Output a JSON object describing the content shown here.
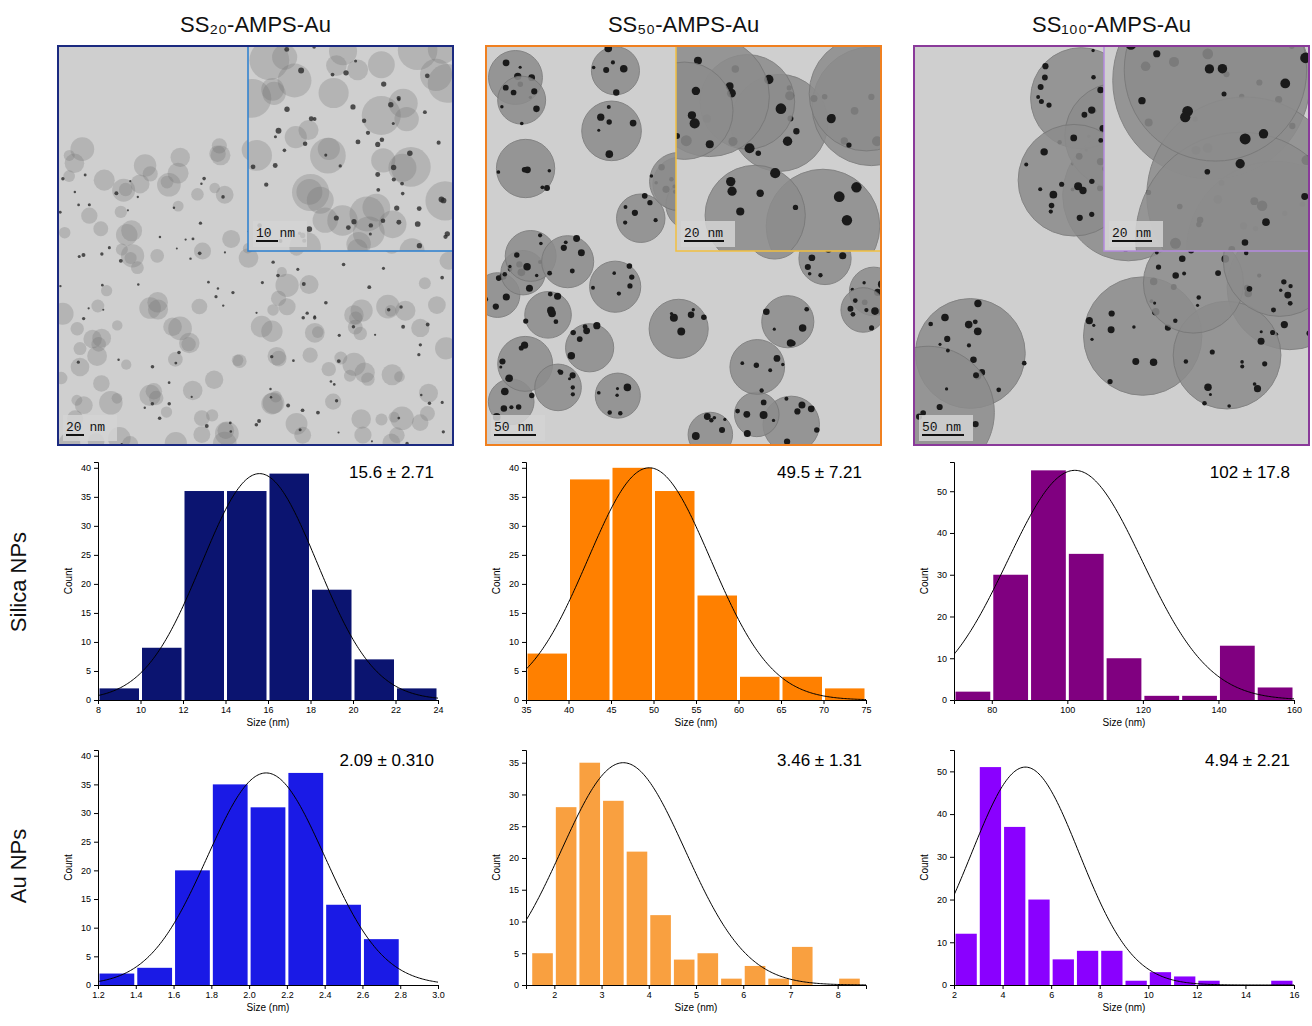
{
  "columns": [
    {
      "title": "SS₂₀-AMPS-Au",
      "scale_bar": "20 nm",
      "inset_scale_bar": "10 nm"
    },
    {
      "title": "SS₅₀-AMPS-Au",
      "scale_bar": "50 nm",
      "inset_scale_bar": "20 nm"
    },
    {
      "title": "SS₁₀₀-AMPS-Au",
      "scale_bar": "50 nm",
      "inset_scale_bar": "20 nm"
    }
  ],
  "row_labels": [
    "Silica NPs",
    "Au NPs"
  ],
  "chart_data": [
    {
      "type": "histogram",
      "annotation": "15.6 ± 2.71",
      "x_label": "Size (nm)",
      "y_label": "Count",
      "bins": [
        8,
        10,
        12,
        14,
        16,
        18,
        20,
        22,
        24
      ],
      "counts": [
        2,
        9,
        36,
        36,
        39,
        19,
        7,
        2
      ],
      "color": "#0b1470",
      "xlim": [
        8,
        24
      ],
      "xticks": [
        8,
        10,
        12,
        14,
        16,
        18,
        20,
        22,
        24
      ],
      "ylim": [
        0,
        41
      ],
      "yticks": [
        0,
        5,
        10,
        15,
        20,
        25,
        30,
        35,
        40
      ],
      "fit": {
        "mean": 15.6,
        "sd": 2.71,
        "peak": 39
      }
    },
    {
      "type": "histogram",
      "annotation": "49.5 ± 7.21",
      "x_label": "Size (nm)",
      "y_label": "Count",
      "bins": [
        35,
        40,
        45,
        50,
        55,
        60,
        65,
        70,
        75
      ],
      "counts": [
        8,
        38,
        40,
        36,
        18,
        4,
        4,
        2
      ],
      "color": "#ff8000",
      "xlim": [
        35,
        75
      ],
      "xticks": [
        35,
        40,
        45,
        50,
        55,
        60,
        65,
        70,
        75
      ],
      "ylim": [
        0,
        41
      ],
      "yticks": [
        0,
        5,
        10,
        15,
        20,
        25,
        30,
        35,
        40
      ],
      "fit": {
        "mean": 49.5,
        "sd": 7.21,
        "peak": 40
      }
    },
    {
      "type": "histogram",
      "annotation": "102 ± 17.8",
      "x_label": "Size (nm)",
      "y_label": "Count",
      "bins": [
        70,
        80,
        90,
        100,
        110,
        120,
        130,
        140,
        150,
        160
      ],
      "counts": [
        2,
        30,
        55,
        35,
        10,
        1,
        1,
        13,
        3
      ],
      "color": "#800080",
      "xlim": [
        70,
        160
      ],
      "xticks": [
        80,
        100,
        120,
        140,
        160
      ],
      "ylim": [
        0,
        57
      ],
      "yticks": [
        0,
        10,
        20,
        30,
        40,
        50
      ],
      "fit": {
        "mean": 102,
        "sd": 17.8,
        "peak": 55
      }
    },
    {
      "type": "histogram",
      "annotation": "2.09 ± 0.310",
      "x_label": "Size (nm)",
      "y_label": "Count",
      "bins": [
        1.2,
        1.4,
        1.6,
        1.8,
        2.0,
        2.2,
        2.4,
        2.6,
        2.8
      ],
      "counts": [
        2,
        3,
        20,
        35,
        31,
        37,
        14,
        8
      ],
      "color": "#1a1ae6",
      "xlim": [
        1.2,
        3.0
      ],
      "xticks": [
        1.2,
        1.4,
        1.6,
        1.8,
        {
          "value": 2,
          "label": "2.0"
        },
        2.2,
        2.4,
        2.6,
        2.8,
        {
          "value": 3,
          "label": "3.0"
        }
      ],
      "ylim": [
        0,
        41
      ],
      "yticks": [
        0,
        5,
        10,
        15,
        20,
        25,
        30,
        35,
        40
      ],
      "fit": {
        "mean": 2.09,
        "sd": 0.31,
        "peak": 37
      }
    },
    {
      "type": "histogram",
      "annotation": "3.46 ± 1.31",
      "x_label": "Size (nm)",
      "y_label": "Count",
      "bins": [
        1.5,
        2,
        2.5,
        3,
        3.5,
        4,
        4.5,
        5,
        5.5,
        6,
        6.5,
        7,
        7.5,
        8,
        8.5
      ],
      "counts": [
        5,
        28,
        35,
        29,
        21,
        11,
        4,
        5,
        1,
        3,
        1,
        6,
        0,
        1
      ],
      "color": "#f9a040",
      "xlim": [
        1.4,
        8.6
      ],
      "xticks": [
        2,
        3,
        4,
        5,
        6,
        7,
        8
      ],
      "ylim": [
        0,
        37
      ],
      "yticks": [
        0,
        5,
        10,
        15,
        20,
        25,
        30,
        35
      ],
      "fit": {
        "mean": 3.46,
        "sd": 1.31,
        "peak": 35
      }
    },
    {
      "type": "histogram",
      "annotation": "4.94 ± 2.21",
      "x_label": "Size (nm)",
      "y_label": "Count",
      "bins": [
        2,
        3,
        4,
        5,
        6,
        7,
        8,
        9,
        10,
        11,
        12,
        13,
        14,
        15,
        16
      ],
      "counts": [
        12,
        51,
        37,
        20,
        6,
        8,
        8,
        1,
        3,
        2,
        1,
        0,
        0,
        1
      ],
      "color": "#8a00ff",
      "xlim": [
        2,
        16
      ],
      "xticks": [
        2,
        4,
        6,
        8,
        10,
        12,
        14,
        16
      ],
      "ylim": [
        0,
        55
      ],
      "yticks": [
        0,
        10,
        20,
        30,
        40,
        50
      ],
      "fit": {
        "mean": 4.94,
        "sd": 2.21,
        "peak": 51
      }
    }
  ]
}
